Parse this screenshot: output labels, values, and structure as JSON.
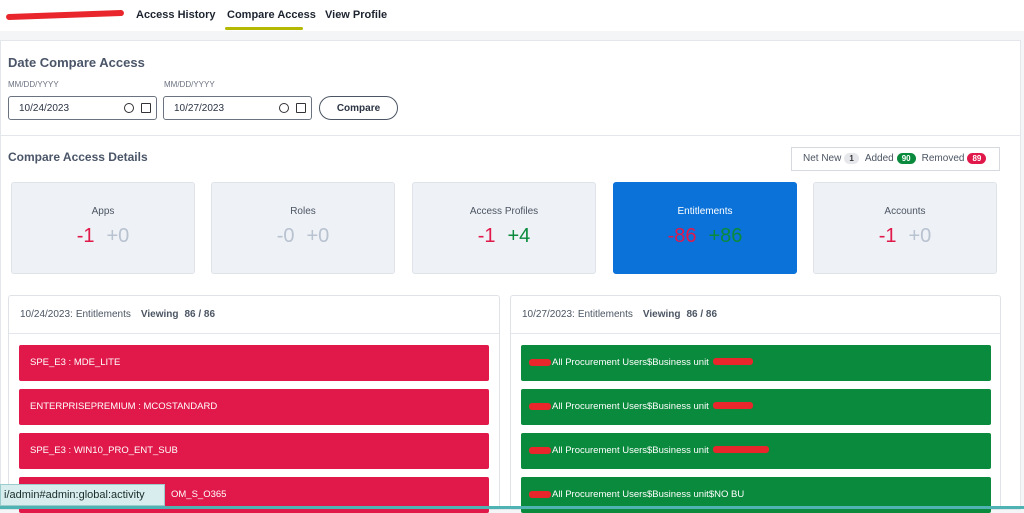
{
  "tabs": [
    "Access History",
    "Compare Access",
    "View Profile"
  ],
  "title": "Date Compare Access",
  "date_from": {
    "hint": "MM/DD/YYYY",
    "value": "10/24/2023"
  },
  "date_to": {
    "hint": "MM/DD/YYYY",
    "value": "10/27/2023"
  },
  "compare_button": "Compare",
  "details_title": "Compare Access Details",
  "legend": [
    {
      "label": "Net New",
      "count": 1
    },
    {
      "label": "Added",
      "count": 90
    },
    {
      "label": "Removed",
      "count": 89
    }
  ],
  "cards": [
    {
      "label": "Apps",
      "removed": "-1",
      "added": "+0"
    },
    {
      "label": "Roles",
      "removed": "-0",
      "added": "+0"
    },
    {
      "label": "Access Profiles",
      "removed": "-1",
      "added": "+4"
    },
    {
      "label": "Entitlements",
      "removed": "-86",
      "added": "+86"
    },
    {
      "label": "Accounts",
      "removed": "-1",
      "added": "+0"
    }
  ],
  "panels": [
    {
      "date": "10/24/2023:",
      "kind": "Entitlements",
      "viewing": "Viewing",
      "count": "86 / 86",
      "items": [
        "SPE_E3 : MDE_LITE",
        "ENTERPRISEPREMIUM : MCOSTANDARD",
        "SPE_E3 : WIN10_PRO_ENT_SUB",
        "OM_S_O365"
      ]
    },
    {
      "date": "10/27/2023:",
      "kind": "Entitlements",
      "viewing": "Viewing",
      "count": "86 / 86",
      "items": [
        "All Procurement Users$Business unit",
        "All Procurement Users$Business unit",
        "All Procurement Users$Business unit",
        "All Procurement Users$Business unit$NO BU"
      ]
    }
  ],
  "status_url": "i/admin#admin:global:activity"
}
